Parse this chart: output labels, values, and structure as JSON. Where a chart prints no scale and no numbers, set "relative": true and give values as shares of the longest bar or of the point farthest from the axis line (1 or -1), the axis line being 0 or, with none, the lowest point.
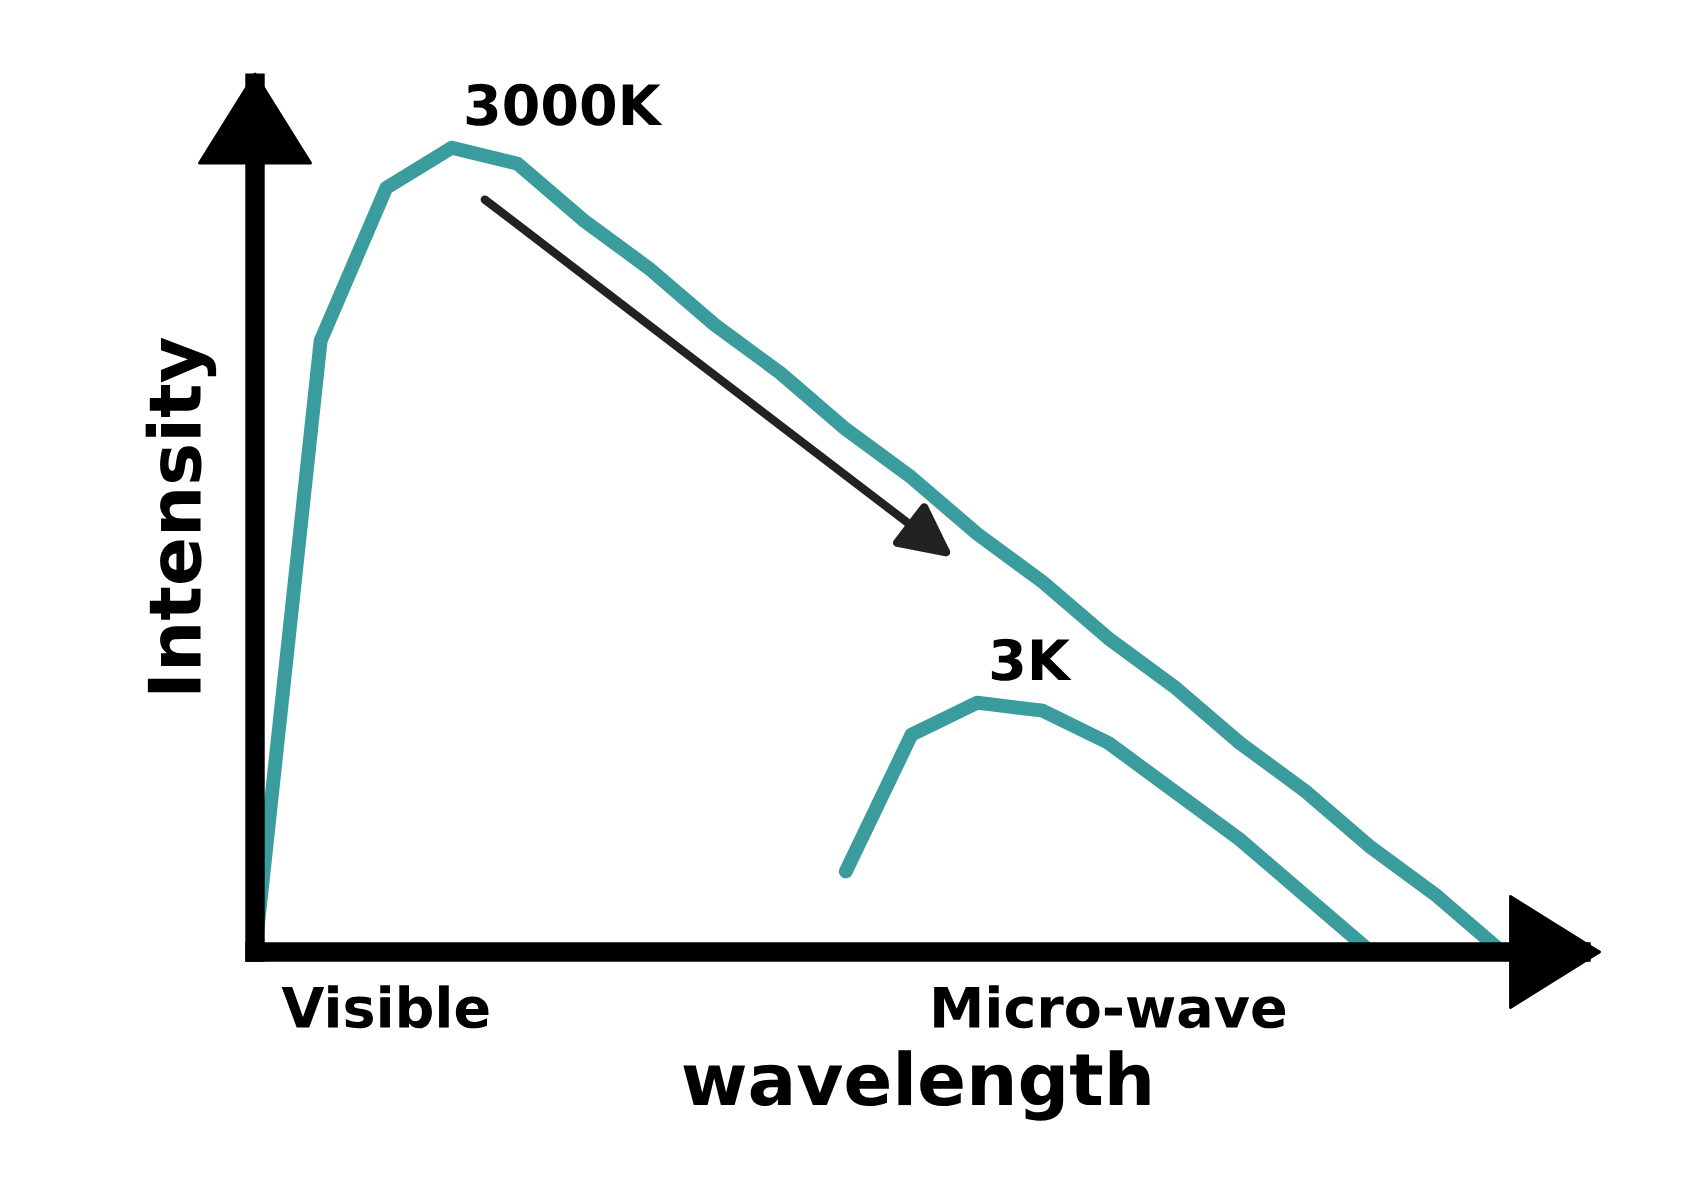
{
  "chart_data": {
    "type": "line",
    "relative": true,
    "xlabel": "wavelength",
    "ylabel": "Intensity",
    "categories": [
      null,
      null,
      "Visible",
      null,
      null,
      null,
      null,
      null,
      null,
      null,
      null,
      null,
      null,
      "Micro-wave",
      null,
      null,
      null,
      null,
      null,
      null
    ],
    "series": [
      {
        "name": "3000K",
        "color": "#3a9c9c",
        "values": [
          0,
          0.76,
          0.95,
          1.0,
          0.98,
          0.91,
          0.85,
          0.78,
          0.72,
          0.65,
          0.59,
          0.52,
          0.46,
          0.39,
          0.33,
          0.26,
          0.2,
          0.13,
          0.07,
          0
        ]
      },
      {
        "name": "3K",
        "color": "#3a9c9c",
        "values": [
          null,
          null,
          null,
          null,
          null,
          null,
          null,
          null,
          null,
          0.1,
          0.27,
          0.31,
          0.3,
          0.26,
          0.2,
          0.14,
          0.07,
          0,
          null,
          null
        ]
      }
    ],
    "grid": false,
    "legend": false,
    "marker": "none",
    "line_style": "solid"
  }
}
